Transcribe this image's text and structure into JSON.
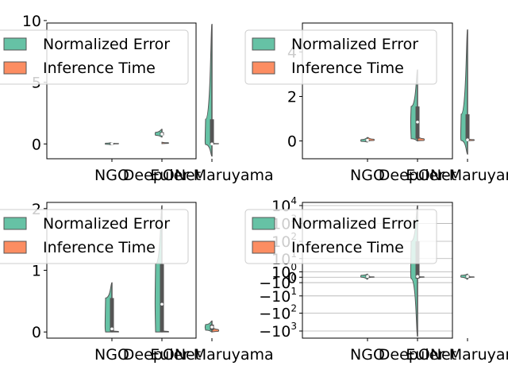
{
  "chart_data": [
    {
      "type": "violin",
      "categories": [
        "NGO",
        "DeepONet",
        "Euler-Maruyama"
      ],
      "yscale": "linear",
      "ylim": [
        -1.2,
        9.8
      ],
      "yticks": [
        0,
        5,
        10
      ],
      "legend": {
        "placement": "upper-left",
        "entries": [
          "Normalized Error",
          "Inference Time"
        ]
      },
      "series": [
        {
          "name": "Normalized Error",
          "color": "#66c2a5",
          "split": "left",
          "values": [
            {
              "category": "NGO",
              "min": -0.08,
              "q1": -0.03,
              "median": 0.02,
              "q3": 0.06,
              "max": 0.12
            },
            {
              "category": "DeepONet",
              "min": 0.55,
              "q1": 0.7,
              "median": 0.8,
              "q3": 0.95,
              "max": 1.2
            },
            {
              "category": "Euler-Maruyama",
              "min": -1.0,
              "q1": -0.05,
              "median": 0.0,
              "q3": 2.0,
              "max": 9.7
            }
          ]
        },
        {
          "name": "Inference Time",
          "color": "#fc8d62",
          "split": "right",
          "values": [
            {
              "category": "NGO",
              "min": 0.0,
              "q1": 0.01,
              "median": 0.02,
              "q3": 0.04,
              "max": 0.06
            },
            {
              "category": "DeepONet",
              "min": 0.02,
              "q1": 0.05,
              "median": 0.08,
              "q3": 0.1,
              "max": 0.14
            },
            {
              "category": "Euler-Maruyama",
              "min": 0.0,
              "q1": 0.01,
              "median": 0.02,
              "q3": 0.03,
              "max": 0.05
            }
          ]
        }
      ]
    },
    {
      "type": "violin",
      "categories": [
        "NGO",
        "DeepONet",
        "Euler-Maruyama"
      ],
      "yscale": "linear",
      "ylim": [
        -0.8,
        5.3
      ],
      "yticks": [
        0,
        2,
        4
      ],
      "legend": {
        "placement": "upper-left",
        "entries": [
          "Normalized Error",
          "Inference Time"
        ]
      },
      "series": [
        {
          "name": "Normalized Error",
          "color": "#66c2a5",
          "split": "left",
          "values": [
            {
              "category": "NGO",
              "min": -0.05,
              "q1": -0.02,
              "median": 0.03,
              "q3": 0.06,
              "max": 0.15
            },
            {
              "category": "DeepONet",
              "min": 0.0,
              "q1": 0.1,
              "median": 0.85,
              "q3": 1.55,
              "max": 3.2
            },
            {
              "category": "Euler-Maruyama",
              "min": -0.6,
              "q1": 0.02,
              "median": 0.05,
              "q3": 1.2,
              "max": 5.0
            }
          ]
        },
        {
          "name": "Inference Time",
          "color": "#fc8d62",
          "split": "right",
          "values": [
            {
              "category": "NGO",
              "min": 0.0,
              "q1": 0.02,
              "median": 0.04,
              "q3": 0.08,
              "max": 0.16
            },
            {
              "category": "DeepONet",
              "min": 0.0,
              "q1": 0.02,
              "median": 0.05,
              "q3": 0.1,
              "max": 0.2
            },
            {
              "category": "Euler-Maruyama",
              "min": 0.0,
              "q1": 0.02,
              "median": 0.04,
              "q3": 0.06,
              "max": 0.1
            }
          ]
        }
      ]
    },
    {
      "type": "violin",
      "categories": [
        "NGO",
        "DeepONet",
        "Euler-Maruyama"
      ],
      "yscale": "linear",
      "ylim": [
        -0.1,
        2.1
      ],
      "yticks": [
        0,
        1,
        2
      ],
      "legend": {
        "placement": "upper-left",
        "entries": [
          "Normalized Error",
          "Inference Time"
        ]
      },
      "series": [
        {
          "name": "Normalized Error",
          "color": "#66c2a5",
          "split": "left",
          "values": [
            {
              "category": "NGO",
              "min": 0.0,
              "q1": 0.0,
              "median": 0.05,
              "q3": 0.55,
              "max": 0.8
            },
            {
              "category": "DeepONet",
              "min": 0.0,
              "q1": 0.0,
              "median": 0.45,
              "q3": 1.1,
              "max": 2.05
            },
            {
              "category": "Euler-Maruyama",
              "min": 0.0,
              "q1": 0.03,
              "median": 0.08,
              "q3": 0.12,
              "max": 0.18
            }
          ]
        },
        {
          "name": "Inference Time",
          "color": "#fc8d62",
          "split": "right",
          "values": [
            {
              "category": "NGO",
              "min": 0.0,
              "q1": 0.0,
              "median": 0.0,
              "q3": 0.01,
              "max": 0.02
            },
            {
              "category": "DeepONet",
              "min": 0.0,
              "q1": 0.0,
              "median": 0.0,
              "q3": 0.01,
              "max": 0.02
            },
            {
              "category": "Euler-Maruyama",
              "min": 0.0,
              "q1": 0.01,
              "median": 0.02,
              "q3": 0.04,
              "max": 0.08
            }
          ]
        }
      ]
    },
    {
      "type": "violin",
      "categories": [
        "NGO",
        "DeepONet",
        "Euler-Maruyama"
      ],
      "yscale": "symlog",
      "ylim": [
        -2500,
        15000
      ],
      "ytick_labels": [
        "10^4",
        "10^3",
        "10^2",
        "10^1",
        "10^0",
        "0",
        "-10^0",
        "-10^1",
        "-10^2",
        "-10^3"
      ],
      "grid": true,
      "legend": {
        "placement": "upper-left",
        "entries": [
          "Normalized Error",
          "Inference Time"
        ]
      },
      "series": [
        {
          "name": "Normalized Error",
          "color": "#66c2a5",
          "split": "left",
          "values": [
            {
              "category": "NGO",
              "min": -0.3,
              "q1": 0.0,
              "median": 0.1,
              "q3": 0.3,
              "max": 0.5
            },
            {
              "category": "DeepONet",
              "min": -2000,
              "q1": -0.2,
              "median": 0.1,
              "q3": 100,
              "max": 10000
            },
            {
              "category": "Euler-Maruyama",
              "min": -0.3,
              "q1": 0.0,
              "median": 0.1,
              "q3": 0.3,
              "max": 0.5
            }
          ]
        },
        {
          "name": "Inference Time",
          "color": "#fc8d62",
          "split": "right",
          "values": [
            {
              "category": "NGO",
              "min": -0.1,
              "q1": 0.0,
              "median": 0.01,
              "q3": 0.05,
              "max": 0.1
            },
            {
              "category": "DeepONet",
              "min": -0.1,
              "q1": 0.0,
              "median": 0.01,
              "q3": 0.05,
              "max": 0.1
            },
            {
              "category": "Euler-Maruyama",
              "min": -0.1,
              "q1": 0.0,
              "median": 0.01,
              "q3": 0.05,
              "max": 0.1
            }
          ]
        }
      ]
    }
  ]
}
